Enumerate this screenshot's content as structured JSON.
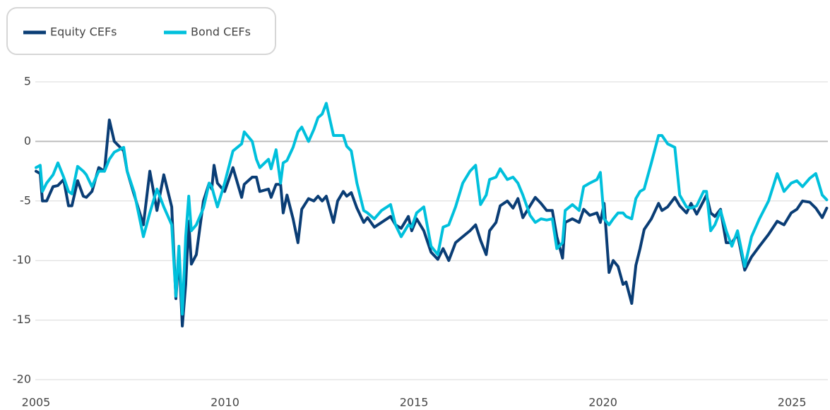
{
  "chart_data": {
    "type": "line",
    "x": [
      2005.0,
      2005.11,
      2005.17,
      2005.28,
      2005.45,
      2005.58,
      2005.73,
      2005.86,
      2005.95,
      2006.1,
      2006.25,
      2006.33,
      2006.48,
      2006.66,
      2006.81,
      2006.94,
      2007.07,
      2007.32,
      2007.41,
      2007.6,
      2007.84,
      2008.01,
      2008.2,
      2008.38,
      2008.59,
      2008.7,
      2008.78,
      2008.87,
      2008.96,
      2009.04,
      2009.11,
      2009.24,
      2009.43,
      2009.58,
      2009.65,
      2009.71,
      2009.8,
      2009.99,
      2010.21,
      2010.44,
      2010.51,
      2010.72,
      2010.83,
      2010.92,
      2011.15,
      2011.22,
      2011.35,
      2011.47,
      2011.54,
      2011.64,
      2011.8,
      2011.93,
      2012.03,
      2012.21,
      2012.35,
      2012.46,
      2012.57,
      2012.68,
      2012.87,
      2012.98,
      2013.13,
      2013.22,
      2013.34,
      2013.49,
      2013.67,
      2013.77,
      2013.95,
      2014.14,
      2014.38,
      2014.51,
      2014.66,
      2014.85,
      2014.94,
      2015.07,
      2015.26,
      2015.45,
      2015.63,
      2015.77,
      2015.92,
      2016.1,
      2016.29,
      2016.48,
      2016.63,
      2016.76,
      2016.91,
      2017.0,
      2017.17,
      2017.28,
      2017.47,
      2017.62,
      2017.75,
      2017.88,
      2018.07,
      2018.21,
      2018.36,
      2018.51,
      2018.66,
      2018.78,
      2018.93,
      2019.0,
      2019.19,
      2019.37,
      2019.49,
      2019.65,
      2019.84,
      2019.93,
      2020.03,
      2020.16,
      2020.27,
      2020.4,
      2020.53,
      2020.61,
      2020.76,
      2020.87,
      2020.98,
      2021.09,
      2021.28,
      2021.47,
      2021.56,
      2021.71,
      2021.9,
      2022.03,
      2022.21,
      2022.33,
      2022.48,
      2022.66,
      2022.74,
      2022.85,
      2022.96,
      2023.11,
      2023.26,
      2023.41,
      2023.56,
      2023.75,
      2023.93,
      2024.14,
      2024.38,
      2024.61,
      2024.79,
      2024.98,
      2025.13,
      2025.28,
      2025.47,
      2025.63,
      2025.8,
      2025.92
    ],
    "series": [
      {
        "name": "Equity CEFs",
        "color": "#0a3d75",
        "values": [
          -2.5,
          -2.7,
          -5,
          -5,
          -3.8,
          -3.7,
          -3.2,
          -5.4,
          -5.4,
          -3.3,
          -4.6,
          -4.7,
          -4.2,
          -2.2,
          -2.5,
          1.8,
          0,
          -0.8,
          -2.5,
          -4.5,
          -7,
          -2.5,
          -5.8,
          -2.8,
          -5.5,
          -13.2,
          -9.5,
          -15.5,
          -12,
          -6.7,
          -10.3,
          -9.5,
          -5,
          -3.5,
          -4,
          -2,
          -3.5,
          -4.2,
          -2.2,
          -4.7,
          -3.6,
          -3,
          -3,
          -4.2,
          -4,
          -4.7,
          -3.6,
          -3.6,
          -6,
          -4.5,
          -6.5,
          -8.5,
          -5.7,
          -4.8,
          -5,
          -4.6,
          -5,
          -4.6,
          -6.8,
          -5,
          -4.2,
          -4.6,
          -4.3,
          -5.6,
          -6.8,
          -6.4,
          -7.2,
          -6.8,
          -6.3,
          -7,
          -7.3,
          -6.3,
          -7.5,
          -6.5,
          -7.5,
          -9.3,
          -9.9,
          -9,
          -10,
          -8.5,
          -8,
          -7.5,
          -7,
          -8.3,
          -9.5,
          -7.5,
          -6.8,
          -5.4,
          -5,
          -5.6,
          -4.8,
          -6.4,
          -5.4,
          -4.7,
          -5.2,
          -5.8,
          -5.8,
          -8,
          -9.8,
          -6.8,
          -6.5,
          -6.8,
          -5.7,
          -6.2,
          -6,
          -6.8,
          -5.2,
          -11,
          -10,
          -10.5,
          -12,
          -11.8,
          -13.6,
          -10.4,
          -9,
          -7.4,
          -6.5,
          -5.2,
          -5.8,
          -5.5,
          -4.7,
          -5.4,
          -6,
          -5.2,
          -6.1,
          -5,
          -4.5,
          -6,
          -6.3,
          -5.7,
          -8.5,
          -8.5,
          -7.8,
          -10.8,
          -9.7,
          -8.8,
          -7.8,
          -6.7,
          -7,
          -6,
          -5.7,
          -5,
          -5.1,
          -5.6,
          -6.4,
          -5.6
        ]
      },
      {
        "name": "Bond CEFs",
        "color": "#00c0dc",
        "values": [
          -2.2,
          -2,
          -4.2,
          -3.5,
          -2.8,
          -1.8,
          -3,
          -4.2,
          -4.4,
          -2.1,
          -2.5,
          -2.8,
          -3.8,
          -2.5,
          -2.5,
          -1.5,
          -0.9,
          -0.5,
          -2.5,
          -4.3,
          -8,
          -6,
          -4,
          -5.5,
          -7,
          -13,
          -8.8,
          -14.5,
          -8,
          -4.6,
          -7.5,
          -7,
          -5.6,
          -3.5,
          -3.8,
          -4.5,
          -5.5,
          -3.5,
          -0.8,
          -0.2,
          0.8,
          0,
          -1.5,
          -2.2,
          -1.5,
          -2.3,
          -0.7,
          -3.5,
          -1.8,
          -1.6,
          -0.5,
          0.8,
          1.2,
          0,
          1,
          2,
          2.3,
          3.2,
          0.5,
          0.5,
          0.5,
          -0.4,
          -0.8,
          -3.5,
          -5.8,
          -6,
          -6.5,
          -5.8,
          -5.3,
          -7,
          -8,
          -7,
          -7.2,
          -6,
          -5.5,
          -8.8,
          -9.5,
          -7.2,
          -7,
          -5.5,
          -3.5,
          -2.5,
          -2,
          -5.3,
          -4.5,
          -3.2,
          -3,
          -2.3,
          -3.2,
          -3,
          -3.5,
          -4.5,
          -6.2,
          -6.8,
          -6.5,
          -6.6,
          -6.5,
          -9,
          -8.5,
          -5.8,
          -5.3,
          -5.8,
          -3.8,
          -3.5,
          -3.2,
          -2.6,
          -6.5,
          -7,
          -6.5,
          -6,
          -6,
          -6.3,
          -6.5,
          -4.8,
          -4.2,
          -4,
          -1.8,
          0.5,
          0.5,
          -0.2,
          -0.5,
          -4.5,
          -5.5,
          -5.6,
          -5.4,
          -4.2,
          -4.2,
          -7.5,
          -7,
          -5.8,
          -7.5,
          -8.8,
          -7.5,
          -10.5,
          -8,
          -6.5,
          -5,
          -2.7,
          -4.2,
          -3.5,
          -3.3,
          -3.8,
          -3.1,
          -2.7,
          -4.5,
          -4.9
        ]
      }
    ],
    "xlim": [
      2005,
      2025.95
    ],
    "ylim": [
      -20,
      5
    ],
    "xticks": [
      2005,
      2010,
      2015,
      2020,
      2025
    ],
    "yticks": [
      5,
      0,
      -5,
      -10,
      -15,
      -20
    ],
    "grid": true,
    "legend": "top-left"
  }
}
